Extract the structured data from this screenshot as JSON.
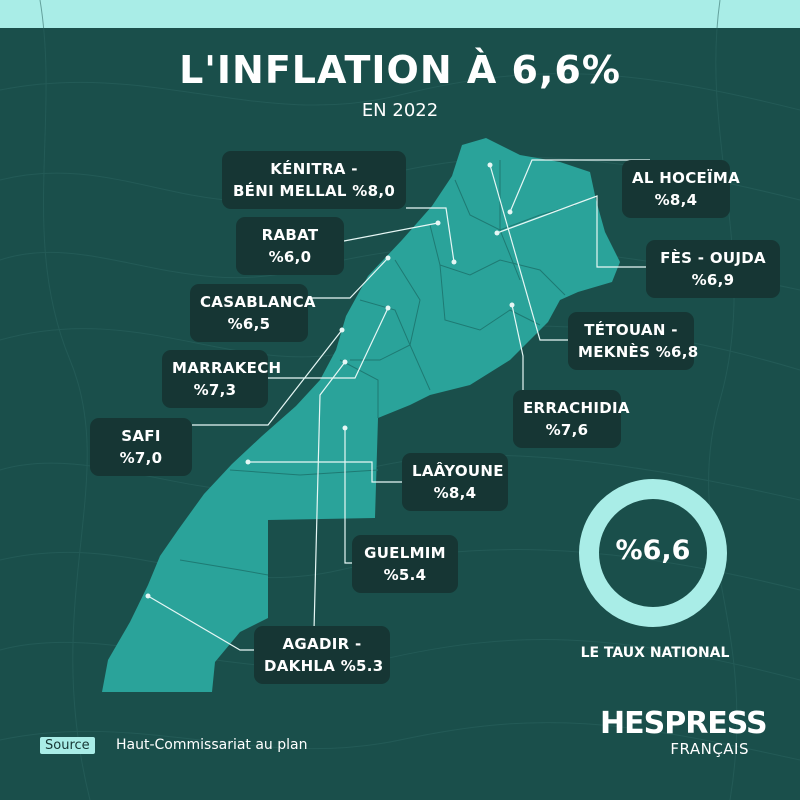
{
  "header": {
    "title": "L'INFLATION À 6,6%",
    "subtitle": "EN 2022"
  },
  "regions": [
    {
      "line1": "KÉNITRA -",
      "line2": "BÉNI MELLAL %8,0",
      "value": 8.0
    },
    {
      "line1": "AL HOCEÏMA",
      "line2": "%8,4",
      "value": 8.4
    },
    {
      "line1": "RABAT",
      "line2": "%6,0",
      "value": 6.0
    },
    {
      "line1": "FÈS - OUJDA",
      "line2": "%6,9",
      "value": 6.9
    },
    {
      "line1": "CASABLANCA",
      "line2": "%6,5",
      "value": 6.5
    },
    {
      "line1": "TÉTOUAN -",
      "line2": "MEKNÈS %6,8",
      "value": 6.8
    },
    {
      "line1": "MARRAKECH",
      "line2": "%7,3",
      "value": 7.3
    },
    {
      "line1": "ERRACHIDIA",
      "line2": "%7,6",
      "value": 7.6
    },
    {
      "line1": "SAFI",
      "line2": "%7,0",
      "value": 7.0
    },
    {
      "line1": "LAÂYOUNE",
      "line2": "%8,4",
      "value": 8.4
    },
    {
      "line1": "GUELMIM",
      "line2": "%5.4",
      "value": 5.4
    },
    {
      "line1": "AGADIR -",
      "line2": "DAKHLA %5.3",
      "value": 5.3
    }
  ],
  "national": {
    "value_label": "%6,6",
    "value": 6.6,
    "label": "LE TAUX NATIONAL"
  },
  "source": {
    "tag": "Source",
    "text": "Haut-Commissariat au plan"
  },
  "brand": {
    "name": "HESPRESS",
    "sub": "FRANÇAIS"
  },
  "colors": {
    "background": "#1a4f4b",
    "map_fill": "#2aa39a",
    "label_box": "#163634",
    "accent": "#a9ede7"
  }
}
